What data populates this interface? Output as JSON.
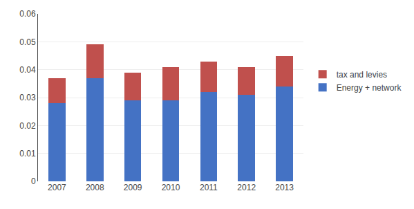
{
  "chart_data": {
    "type": "bar",
    "stacked": true,
    "categories": [
      "2007",
      "2008",
      "2009",
      "2010",
      "2011",
      "2012",
      "2013"
    ],
    "series": [
      {
        "name": "Energy + network",
        "color": "#4472C4",
        "values": [
          0.028,
          0.037,
          0.029,
          0.029,
          0.032,
          0.031,
          0.034
        ]
      },
      {
        "name": "tax and levies",
        "color": "#C0504D",
        "values": [
          0.009,
          0.012,
          0.01,
          0.012,
          0.011,
          0.01,
          0.011
        ]
      }
    ],
    "ylim": [
      0,
      0.06
    ],
    "yticks": [
      0,
      0.01,
      0.02,
      0.03,
      0.04,
      0.05,
      0.06
    ],
    "grid": true,
    "legend": "right"
  }
}
